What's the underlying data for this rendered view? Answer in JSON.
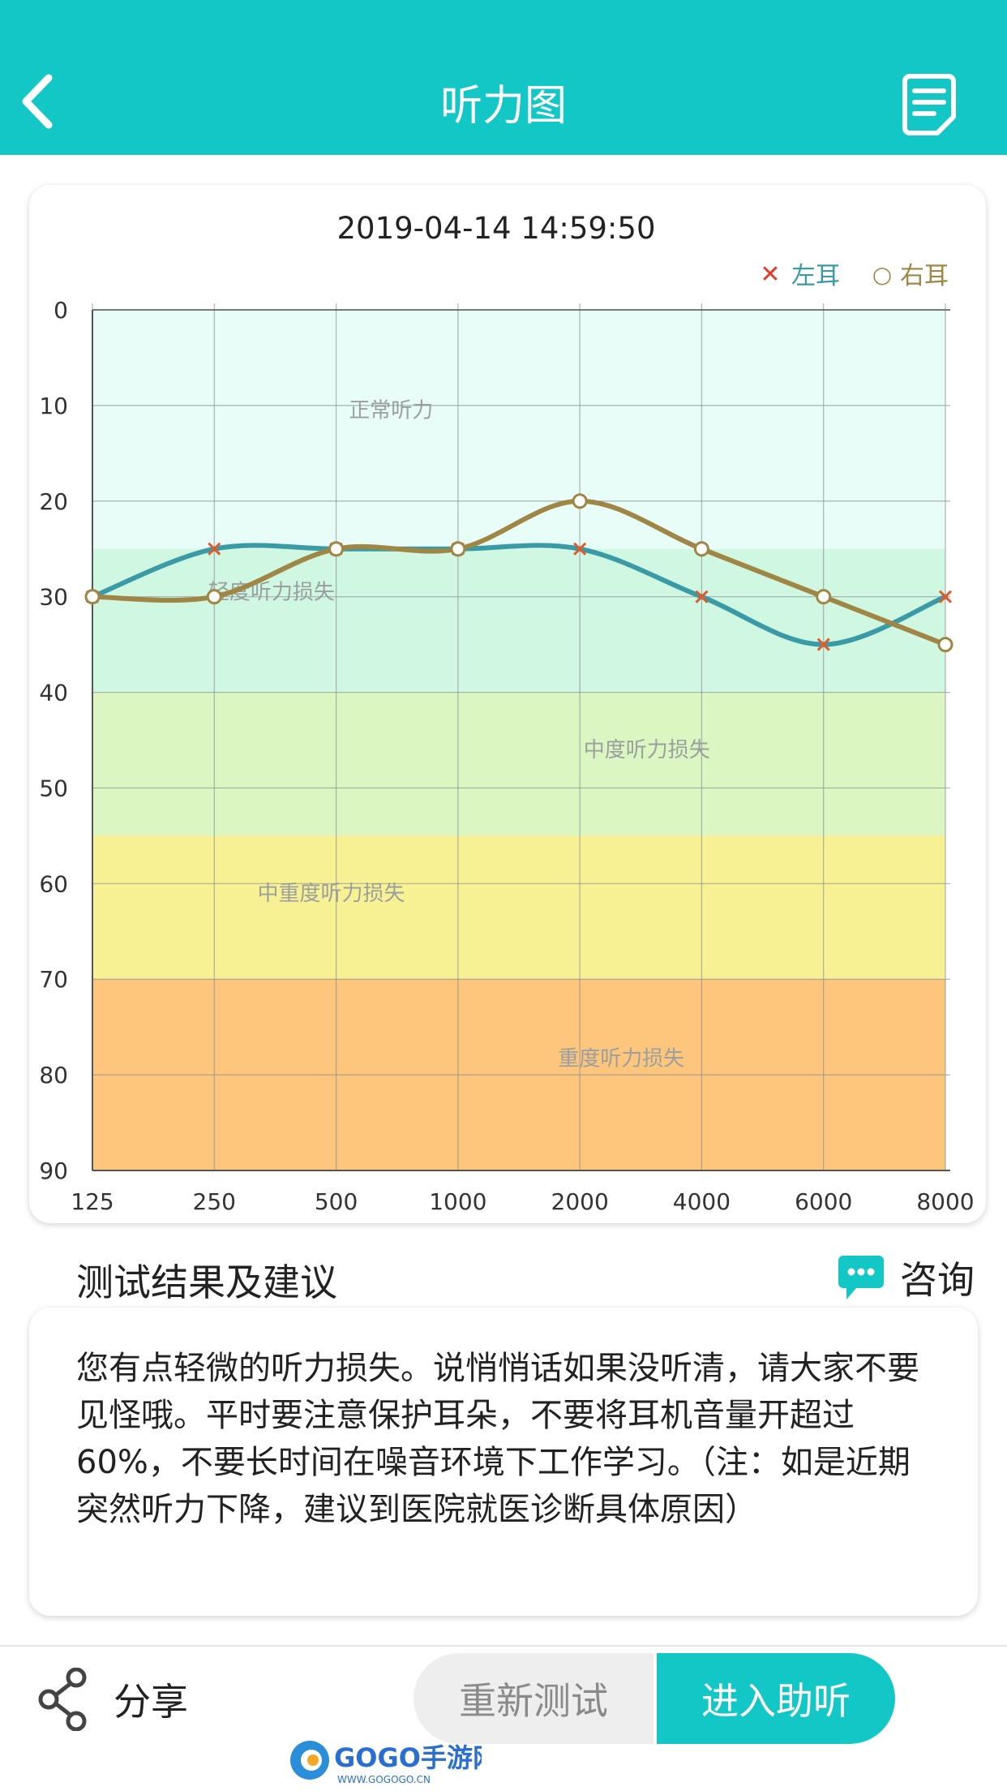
{
  "nav": {
    "title": "听力图"
  },
  "chart": {
    "timestamp": "2019-04-14 14:59:50",
    "legend": {
      "left": "左耳",
      "right": "右耳",
      "left_symbol": "✕",
      "right_symbol": "○"
    },
    "zones": [
      {
        "label": "正常听力",
        "from": 0,
        "to": 25,
        "color": "#e8fdf8"
      },
      {
        "label": "轻度听力损失",
        "from": 25,
        "to": 40,
        "color": "#cff7e1"
      },
      {
        "label": "中度听力损失",
        "from": 40,
        "to": 55,
        "color": "#dbf6c0"
      },
      {
        "label": "中重度听力损失",
        "from": 55,
        "to": 70,
        "color": "#f8f194"
      },
      {
        "label": "重度听力损失",
        "from": 70,
        "to": 90,
        "color": "#fec57c"
      }
    ],
    "colors": {
      "left": "#3a9aa5",
      "right": "#a08644",
      "left_marker": "#e05a2b"
    }
  },
  "chart_data": {
    "type": "line",
    "x": [
      "125",
      "250",
      "500",
      "1000",
      "2000",
      "4000",
      "6000",
      "8000"
    ],
    "series": [
      {
        "name": "左耳",
        "values": [
          30,
          25,
          25,
          25,
          25,
          30,
          35,
          30
        ]
      },
      {
        "name": "右耳",
        "values": [
          30,
          30,
          25,
          25,
          20,
          25,
          30,
          35
        ]
      }
    ],
    "ylim": [
      0,
      90
    ],
    "y_ticks": [
      "0",
      "10",
      "20",
      "30",
      "40",
      "50",
      "60",
      "70",
      "80",
      "90"
    ],
    "y_inverted": true,
    "grid": true,
    "legend_position": "top-right"
  },
  "advice": {
    "title": "测试结果及建议",
    "consult_label": "咨询",
    "text": "您有点轻微的听力损失。说悄悄话如果没听清，请大家不要见怪哦。平时要注意保护耳朵，不要将耳机音量开超过60%，不要长时间在噪音环境下工作学习。（注：如是近期突然听力下降，建议到医院就医诊断具体原因）"
  },
  "bottom": {
    "share_label": "分享",
    "retest_label": "重新测试",
    "enter_label": "进入助听"
  },
  "watermark": {
    "brand": "GOGO手游网",
    "url": "WWW.GOGOGO.CN"
  }
}
